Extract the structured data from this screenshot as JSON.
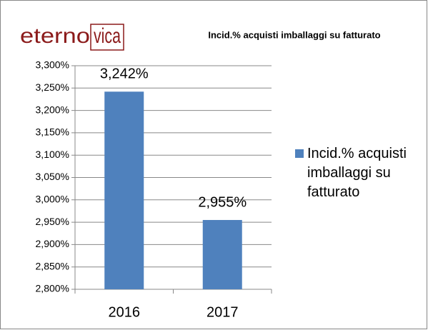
{
  "logo": {
    "left": "eterno",
    "right": "vica"
  },
  "chart_data": {
    "type": "bar",
    "title": "Incid.%  acquisti  imballaggi su fatturato",
    "categories": [
      "2016",
      "2017"
    ],
    "series": [
      {
        "name": "Incid.% acquisti imballaggi su fatturato",
        "color": "#4f81bd",
        "values": [
          3.242,
          2.955
        ],
        "value_labels": [
          "3,242%",
          "2,955%"
        ]
      }
    ],
    "ylim": [
      2.8,
      3.3
    ],
    "yticks": [
      {
        "value": 2.8,
        "label": "2,800%"
      },
      {
        "value": 2.85,
        "label": "2,850%"
      },
      {
        "value": 2.9,
        "label": "2,900%"
      },
      {
        "value": 2.95,
        "label": "2,950%"
      },
      {
        "value": 3.0,
        "label": "3,000%"
      },
      {
        "value": 3.05,
        "label": "3,050%"
      },
      {
        "value": 3.1,
        "label": "3,100%"
      },
      {
        "value": 3.15,
        "label": "3,150%"
      },
      {
        "value": 3.2,
        "label": "3,200%"
      },
      {
        "value": 3.25,
        "label": "3,250%"
      },
      {
        "value": 3.3,
        "label": "3,300%"
      }
    ],
    "grid": true,
    "legend": "right"
  }
}
